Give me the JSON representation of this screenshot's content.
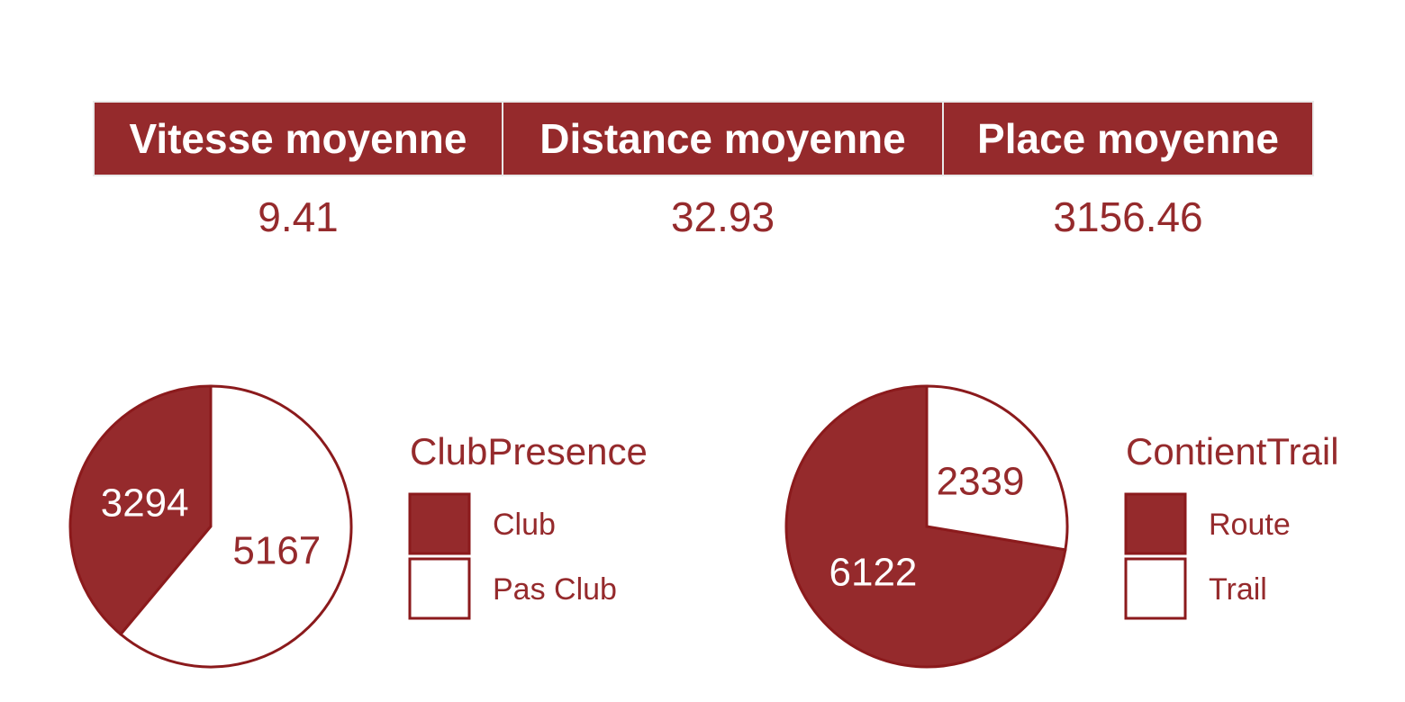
{
  "colors": {
    "accent": "#952a2c",
    "stroke": "#8b1a1c",
    "background": "#ffffff"
  },
  "stats": {
    "headers": [
      "Vitesse moyenne",
      "Distance moyenne",
      "Place moyenne"
    ],
    "values": [
      "9.41",
      "32.93",
      "3156.46"
    ]
  },
  "chart_data": [
    {
      "type": "pie",
      "legend_title": "ClubPresence",
      "legend_position": "right",
      "categories": [
        "Club",
        "Pas Club"
      ],
      "values": [
        3294,
        5167
      ],
      "fills": [
        "#952a2c",
        "#ffffff"
      ],
      "label_colors": [
        "#ffffff",
        "#952a2c"
      ]
    },
    {
      "type": "pie",
      "legend_title": "ContientTrail",
      "legend_position": "right",
      "categories": [
        "Route",
        "Trail"
      ],
      "values": [
        6122,
        2339
      ],
      "fills": [
        "#952a2c",
        "#ffffff"
      ],
      "label_colors": [
        "#ffffff",
        "#952a2c"
      ]
    }
  ]
}
